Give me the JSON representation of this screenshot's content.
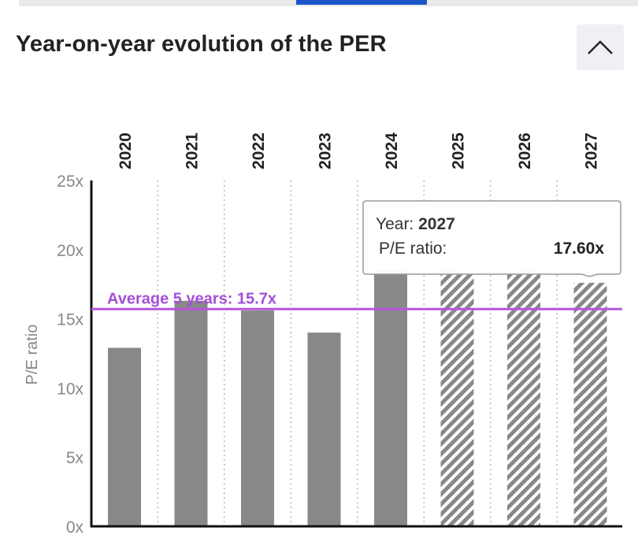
{
  "header": {
    "title": "Year-on-year evolution of the PER",
    "collapse_icon": "chevron-up-icon"
  },
  "chart_data": {
    "type": "bar",
    "title": "Year-on-year evolution of the PER",
    "ylabel": "P/E ratio",
    "xlabel": "",
    "ylim": [
      0,
      25
    ],
    "y_ticks": [
      "0x",
      "5x",
      "10x",
      "15x",
      "20x",
      "25x"
    ],
    "categories": [
      "2020",
      "2021",
      "2022",
      "2023",
      "2024",
      "2025",
      "2026",
      "2027"
    ],
    "values": [
      12.9,
      16.3,
      15.6,
      14.0,
      18.5,
      18.5,
      18.5,
      17.6
    ],
    "estimated": [
      false,
      false,
      false,
      false,
      false,
      true,
      true,
      true
    ],
    "average": {
      "label": "Average 5 years: 15.7x",
      "value": 15.7
    },
    "tooltip": {
      "year_label": "Year: ",
      "year_value": "2027",
      "ratio_label": "P/E ratio:",
      "ratio_value": "17.60x"
    },
    "colors": {
      "bar": "#888888",
      "average_line": "#b555dc",
      "average_text": "#a54fd6",
      "axis": "#111111"
    }
  }
}
